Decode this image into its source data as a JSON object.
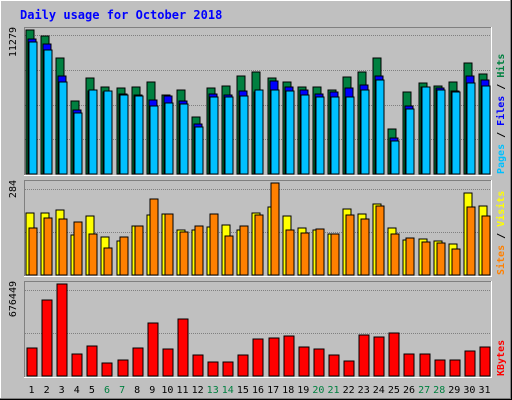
{
  "title": "Daily usage for October 2018",
  "colors": {
    "background": "#C0C0C0",
    "plot_bg": "#C0C0C0",
    "title": "#0000FF",
    "hits": "#008040",
    "files": "#0000FF",
    "pages": "#00C0FF",
    "visits": "#FFFF00",
    "sites": "#FF8000",
    "kbytes": "#FF0000",
    "weekend_label": "#008040",
    "weekday_label": "#000000"
  },
  "chart_data": [
    {
      "type": "bar",
      "panel": "top",
      "ymax_label": "11279",
      "ylim": [
        0,
        11279
      ],
      "legend": [
        {
          "label": "Pages",
          "color": "#00C0FF"
        },
        {
          "label": "/",
          "color": "#000000"
        },
        {
          "label": "Files",
          "color": "#0000FF"
        },
        {
          "label": "/",
          "color": "#000000"
        },
        {
          "label": "Hits",
          "color": "#008040"
        }
      ],
      "categories": [
        "1",
        "2",
        "3",
        "4",
        "5",
        "6",
        "7",
        "8",
        "9",
        "10",
        "11",
        "12",
        "13",
        "14",
        "15",
        "16",
        "17",
        "18",
        "19",
        "20",
        "21",
        "22",
        "23",
        "24",
        "25",
        "26",
        "27",
        "28",
        "29",
        "30",
        "31"
      ],
      "series": [
        {
          "name": "Hits",
          "values": [
            11279,
            10800,
            9100,
            5700,
            7500,
            6800,
            6700,
            6800,
            7200,
            6200,
            6600,
            4500,
            6700,
            6900,
            7700,
            8000,
            7500,
            7200,
            6800,
            6800,
            6600,
            7600,
            8000,
            9100,
            3500,
            6400,
            7100,
            6900,
            7200,
            8700,
            7800
          ]
        },
        {
          "name": "Files",
          "values": [
            10600,
            10200,
            7700,
            5000,
            6500,
            6400,
            6300,
            6200,
            5800,
            6100,
            5700,
            3900,
            6300,
            6200,
            6500,
            6400,
            7300,
            6800,
            6600,
            6300,
            6400,
            6700,
            7000,
            7700,
            2800,
            5300,
            6800,
            6700,
            6500,
            7700,
            7400
          ]
        },
        {
          "name": "Pages",
          "values": [
            10300,
            9700,
            7200,
            4800,
            6600,
            6500,
            6200,
            6100,
            5300,
            5600,
            5500,
            3700,
            6000,
            6000,
            6100,
            6600,
            6600,
            6500,
            6200,
            6000,
            6000,
            6000,
            6600,
            7400,
            2600,
            5100,
            6800,
            6600,
            6400,
            7100,
            6900
          ]
        }
      ]
    },
    {
      "type": "bar",
      "panel": "middle",
      "ymax_label": "284",
      "ylim": [
        0,
        284
      ],
      "legend": [
        {
          "label": "Sites",
          "color": "#FF8000"
        },
        {
          "label": "/",
          "color": "#000000"
        },
        {
          "label": "Visits",
          "color": "#FFFF00"
        }
      ],
      "categories": [
        "1",
        "2",
        "3",
        "4",
        "5",
        "6",
        "7",
        "8",
        "9",
        "10",
        "11",
        "12",
        "13",
        "14",
        "15",
        "16",
        "17",
        "18",
        "19",
        "20",
        "21",
        "22",
        "23",
        "24",
        "25",
        "26",
        "27",
        "28",
        "29",
        "30",
        "31"
      ],
      "series": [
        {
          "name": "Visits",
          "values": [
            192,
            192,
            200,
            125,
            183,
            116,
            105,
            150,
            184,
            188,
            138,
            138,
            149,
            155,
            140,
            192,
            210,
            182,
            145,
            138,
            128,
            204,
            188,
            218,
            145,
            108,
            112,
            106,
            96,
            252,
            214
          ]
        },
        {
          "name": "Sites",
          "values": [
            146,
            176,
            172,
            164,
            126,
            84,
            118,
            150,
            235,
            187,
            132,
            150,
            187,
            121,
            152,
            186,
            284,
            140,
            130,
            143,
            126,
            184,
            172,
            212,
            128,
            114,
            103,
            100,
            80,
            210,
            183
          ]
        }
      ]
    },
    {
      "type": "bar",
      "panel": "bottom",
      "ymax_label": "676449",
      "ylim": [
        0,
        676449
      ],
      "legend": [
        {
          "label": "KBytes",
          "color": "#FF0000"
        }
      ],
      "categories": [
        "1",
        "2",
        "3",
        "4",
        "5",
        "6",
        "7",
        "8",
        "9",
        "10",
        "11",
        "12",
        "13",
        "14",
        "15",
        "16",
        "17",
        "18",
        "19",
        "20",
        "21",
        "22",
        "23",
        "24",
        "25",
        "26",
        "27",
        "28",
        "29",
        "30",
        "31"
      ],
      "series": [
        {
          "name": "KBytes",
          "values": [
            205000,
            556000,
            676449,
            161000,
            221000,
            92000,
            114000,
            205000,
            393000,
            195000,
            420000,
            151000,
            100000,
            102000,
            152000,
            272000,
            283000,
            292000,
            213000,
            195000,
            152000,
            108000,
            302000,
            287000,
            317000,
            161000,
            161000,
            116000,
            115000,
            185000,
            215000
          ]
        }
      ]
    }
  ],
  "x_labels": [
    {
      "label": "1",
      "weekend": false
    },
    {
      "label": "2",
      "weekend": false
    },
    {
      "label": "3",
      "weekend": false
    },
    {
      "label": "4",
      "weekend": false
    },
    {
      "label": "5",
      "weekend": false
    },
    {
      "label": "6",
      "weekend": true
    },
    {
      "label": "7",
      "weekend": true
    },
    {
      "label": "8",
      "weekend": false
    },
    {
      "label": "9",
      "weekend": false
    },
    {
      "label": "10",
      "weekend": false
    },
    {
      "label": "11",
      "weekend": false
    },
    {
      "label": "12",
      "weekend": false
    },
    {
      "label": "13",
      "weekend": true
    },
    {
      "label": "14",
      "weekend": true
    },
    {
      "label": "15",
      "weekend": false
    },
    {
      "label": "16",
      "weekend": false
    },
    {
      "label": "17",
      "weekend": false
    },
    {
      "label": "18",
      "weekend": false
    },
    {
      "label": "19",
      "weekend": false
    },
    {
      "label": "20",
      "weekend": true
    },
    {
      "label": "21",
      "weekend": true
    },
    {
      "label": "22",
      "weekend": false
    },
    {
      "label": "23",
      "weekend": false
    },
    {
      "label": "24",
      "weekend": false
    },
    {
      "label": "25",
      "weekend": false
    },
    {
      "label": "26",
      "weekend": false
    },
    {
      "label": "27",
      "weekend": true
    },
    {
      "label": "28",
      "weekend": true
    },
    {
      "label": "29",
      "weekend": false
    },
    {
      "label": "30",
      "weekend": false
    },
    {
      "label": "31",
      "weekend": false
    }
  ]
}
